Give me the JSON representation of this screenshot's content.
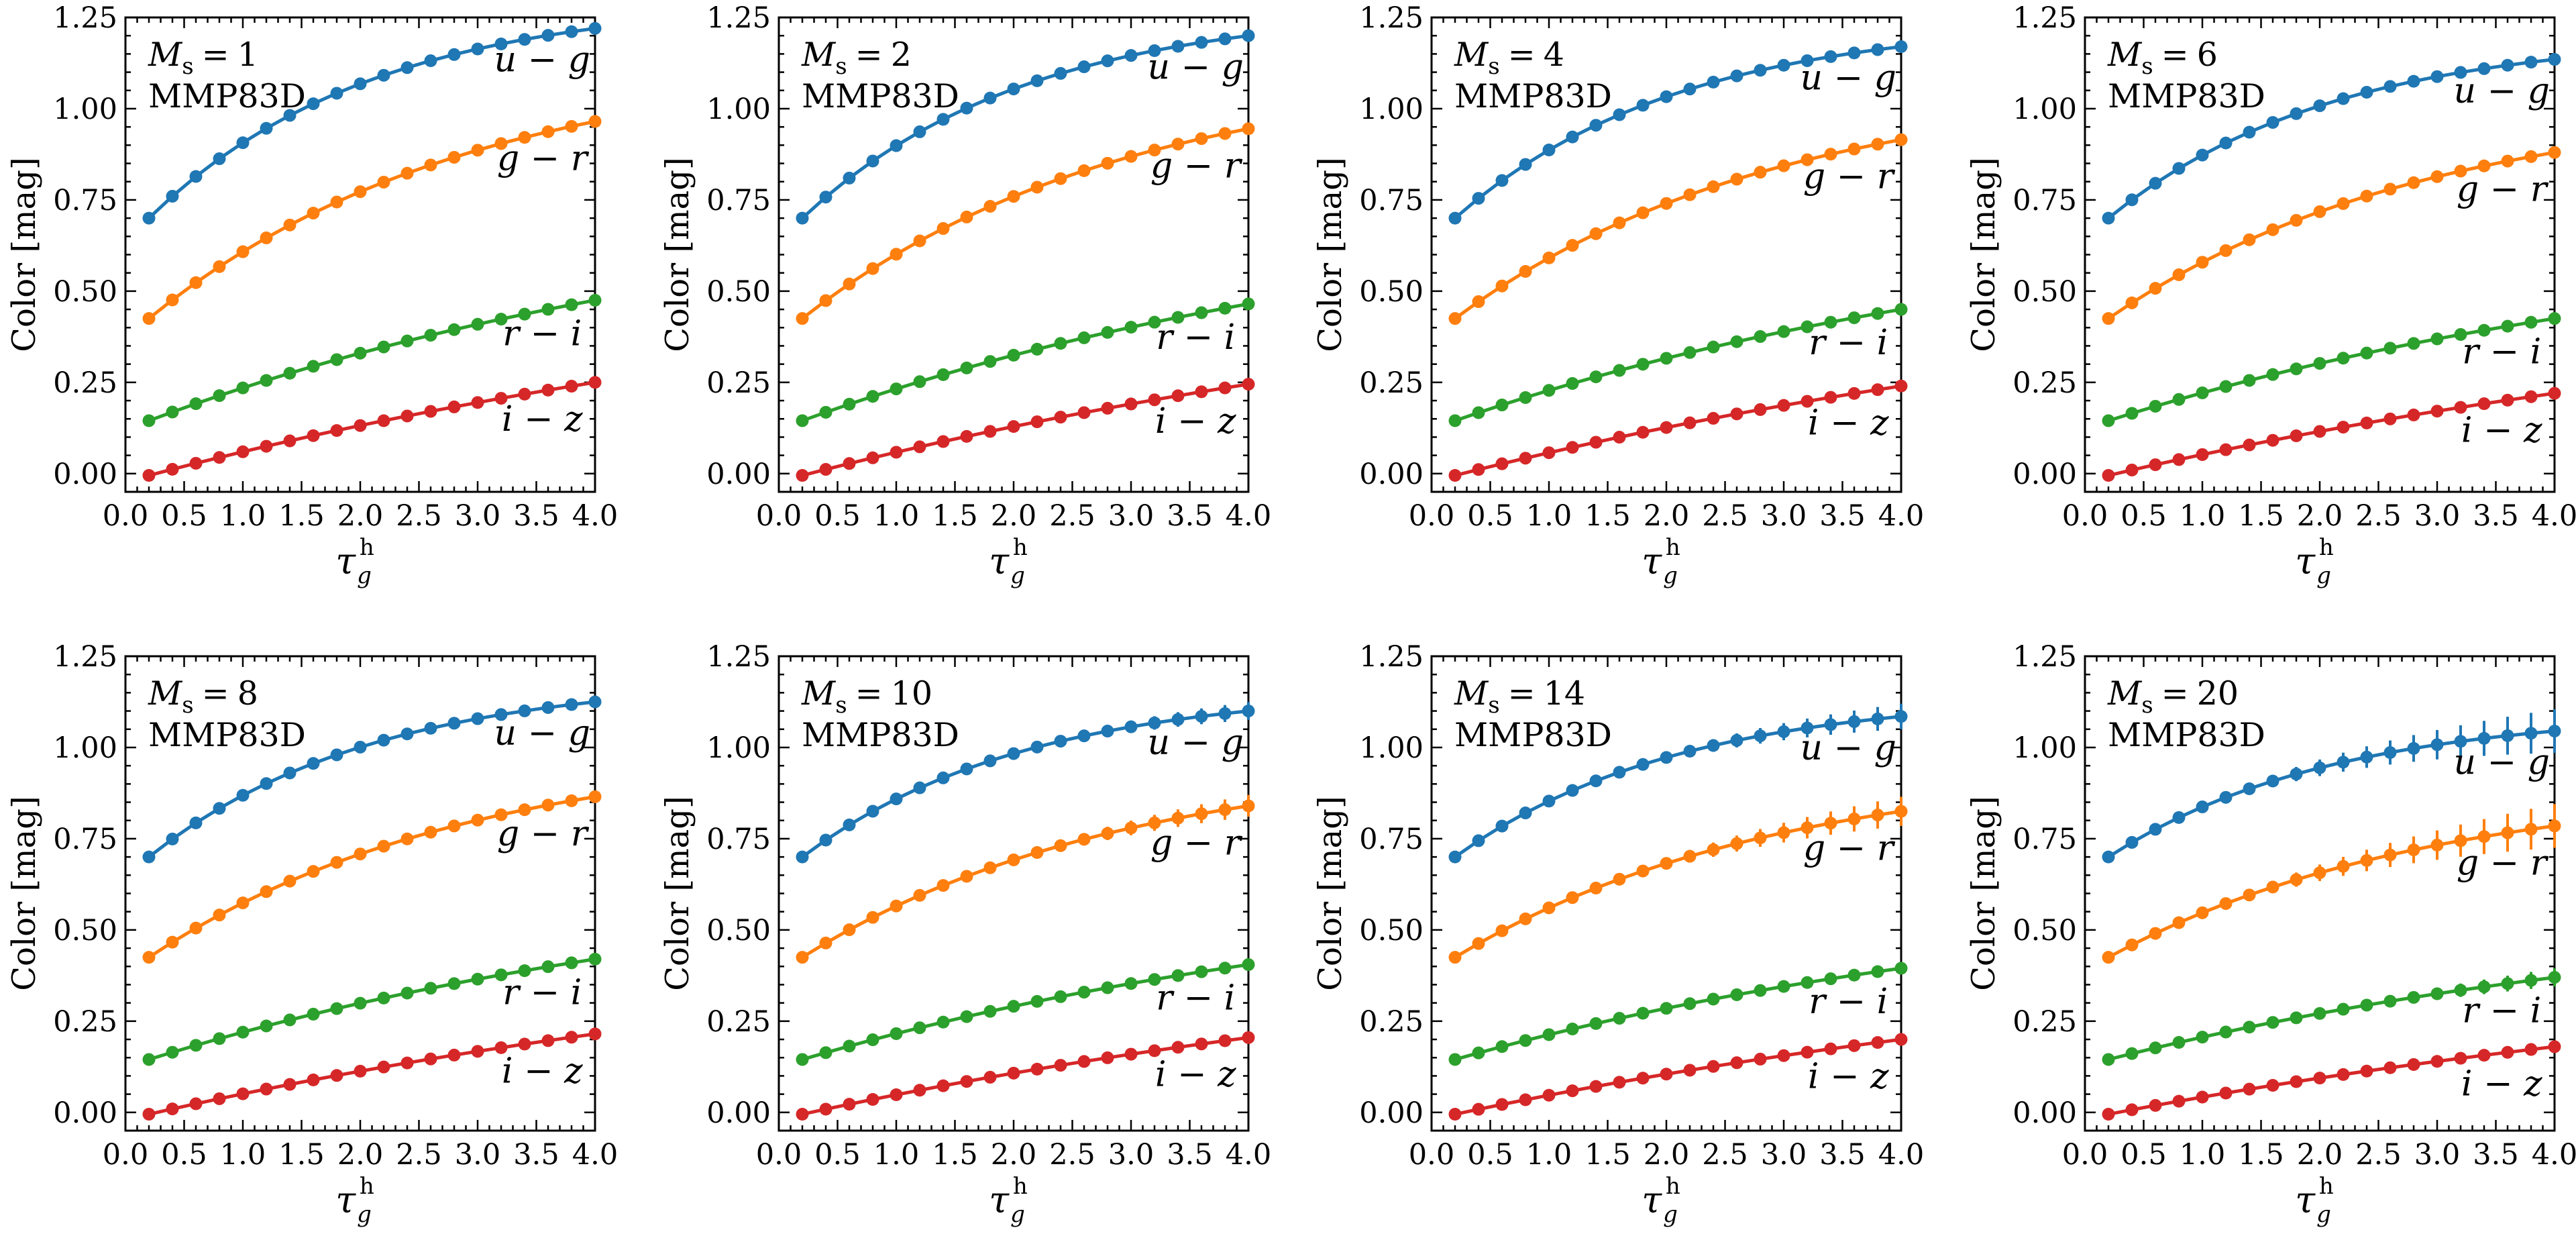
{
  "figure": {
    "y_axis_label": "Color [mag]",
    "x_axis_label": "τ",
    "x_axis_label_sub": "g",
    "x_axis_label_sup": "h",
    "model_label": "MMP83D",
    "ms_symbol": "M",
    "ms_sub": "s"
  },
  "colors": {
    "u-g": "#1f77b4",
    "g-r": "#ff7f0e",
    "r-i": "#2ca02c",
    "i-z": "#d62728"
  },
  "chart_data": {
    "type": "line",
    "layout": "2x4 grid of panels",
    "x": [
      0.2,
      0.4,
      0.6,
      0.8,
      1.0,
      1.2,
      1.4,
      1.6,
      1.8,
      2.0,
      2.2,
      2.4,
      2.6,
      2.8,
      3.0,
      3.2,
      3.4,
      3.6,
      3.8,
      4.0
    ],
    "xlim": [
      0.0,
      4.0
    ],
    "ylim": [
      -0.05,
      1.25
    ],
    "x_ticks": [
      "0.0",
      "0.5",
      "1.0",
      "1.5",
      "2.0",
      "2.5",
      "3.0",
      "3.5",
      "4.0"
    ],
    "y_ticks": [
      "0.00",
      "0.25",
      "0.50",
      "0.75",
      "1.00",
      "1.25"
    ],
    "series_names": [
      "u − g",
      "g − r",
      "r − i",
      "i − z"
    ],
    "panels": [
      {
        "ms_value": "1",
        "series": [
          {
            "key": "u-g",
            "name": "u − g",
            "start": 0.7,
            "end": 1.22,
            "curvature": 2.0,
            "err_end": 0.0
          },
          {
            "key": "g-r",
            "name": "g − r",
            "start": 0.425,
            "end": 0.965,
            "curvature": 1.4,
            "err_end": 0.0
          },
          {
            "key": "r-i",
            "name": "r − i",
            "start": 0.145,
            "end": 0.475,
            "curvature": 0.7,
            "err_end": 0.0
          },
          {
            "key": "i-z",
            "name": "i − z",
            "start": -0.005,
            "end": 0.25,
            "curvature": 0.5,
            "err_end": 0.0
          }
        ]
      },
      {
        "ms_value": "2",
        "series": [
          {
            "key": "u-g",
            "name": "u − g",
            "start": 0.7,
            "end": 1.2,
            "curvature": 2.0,
            "err_end": 0.0
          },
          {
            "key": "g-r",
            "name": "g − r",
            "start": 0.425,
            "end": 0.945,
            "curvature": 1.4,
            "err_end": 0.0
          },
          {
            "key": "r-i",
            "name": "r − i",
            "start": 0.145,
            "end": 0.465,
            "curvature": 0.7,
            "err_end": 0.0
          },
          {
            "key": "i-z",
            "name": "i − z",
            "start": -0.005,
            "end": 0.245,
            "curvature": 0.5,
            "err_end": 0.0
          }
        ]
      },
      {
        "ms_value": "4",
        "series": [
          {
            "key": "u-g",
            "name": "u − g",
            "start": 0.7,
            "end": 1.17,
            "curvature": 2.0,
            "err_end": 0.005
          },
          {
            "key": "g-r",
            "name": "g − r",
            "start": 0.425,
            "end": 0.915,
            "curvature": 1.4,
            "err_end": 0.005
          },
          {
            "key": "r-i",
            "name": "r − i",
            "start": 0.145,
            "end": 0.45,
            "curvature": 0.7,
            "err_end": 0.0
          },
          {
            "key": "i-z",
            "name": "i − z",
            "start": -0.005,
            "end": 0.24,
            "curvature": 0.5,
            "err_end": 0.0
          }
        ]
      },
      {
        "ms_value": "6",
        "series": [
          {
            "key": "u-g",
            "name": "u − g",
            "start": 0.7,
            "end": 1.135,
            "curvature": 2.0,
            "err_end": 0.01
          },
          {
            "key": "g-r",
            "name": "g − r",
            "start": 0.425,
            "end": 0.88,
            "curvature": 1.4,
            "err_end": 0.01
          },
          {
            "key": "r-i",
            "name": "r − i",
            "start": 0.145,
            "end": 0.425,
            "curvature": 0.7,
            "err_end": 0.005
          },
          {
            "key": "i-z",
            "name": "i − z",
            "start": -0.005,
            "end": 0.22,
            "curvature": 0.5,
            "err_end": 0.0
          }
        ]
      },
      {
        "ms_value": "8",
        "series": [
          {
            "key": "u-g",
            "name": "u − g",
            "start": 0.7,
            "end": 1.125,
            "curvature": 2.0,
            "err_end": 0.01
          },
          {
            "key": "g-r",
            "name": "g − r",
            "start": 0.425,
            "end": 0.865,
            "curvature": 1.4,
            "err_end": 0.01
          },
          {
            "key": "r-i",
            "name": "r − i",
            "start": 0.145,
            "end": 0.42,
            "curvature": 0.7,
            "err_end": 0.005
          },
          {
            "key": "i-z",
            "name": "i − z",
            "start": -0.005,
            "end": 0.215,
            "curvature": 0.5,
            "err_end": 0.0
          }
        ]
      },
      {
        "ms_value": "10",
        "series": [
          {
            "key": "u-g",
            "name": "u − g",
            "start": 0.7,
            "end": 1.1,
            "curvature": 2.0,
            "err_end": 0.025
          },
          {
            "key": "g-r",
            "name": "g − r",
            "start": 0.425,
            "end": 0.84,
            "curvature": 1.4,
            "err_end": 0.03
          },
          {
            "key": "r-i",
            "name": "r − i",
            "start": 0.145,
            "end": 0.405,
            "curvature": 0.7,
            "err_end": 0.01
          },
          {
            "key": "i-z",
            "name": "i − z",
            "start": -0.005,
            "end": 0.205,
            "curvature": 0.5,
            "err_end": 0.005
          }
        ]
      },
      {
        "ms_value": "14",
        "series": [
          {
            "key": "u-g",
            "name": "u − g",
            "start": 0.7,
            "end": 1.085,
            "curvature": 2.0,
            "err_end": 0.035
          },
          {
            "key": "g-r",
            "name": "g − r",
            "start": 0.425,
            "end": 0.825,
            "curvature": 1.4,
            "err_end": 0.04
          },
          {
            "key": "r-i",
            "name": "r − i",
            "start": 0.145,
            "end": 0.395,
            "curvature": 0.7,
            "err_end": 0.015
          },
          {
            "key": "i-z",
            "name": "i − z",
            "start": -0.005,
            "end": 0.2,
            "curvature": 0.5,
            "err_end": 0.008
          }
        ]
      },
      {
        "ms_value": "20",
        "series": [
          {
            "key": "u-g",
            "name": "u − g",
            "start": 0.7,
            "end": 1.045,
            "curvature": 2.0,
            "err_end": 0.06
          },
          {
            "key": "g-r",
            "name": "g − r",
            "start": 0.425,
            "end": 0.785,
            "curvature": 1.4,
            "err_end": 0.06
          },
          {
            "key": "r-i",
            "name": "r − i",
            "start": 0.145,
            "end": 0.37,
            "curvature": 0.7,
            "err_end": 0.025
          },
          {
            "key": "i-z",
            "name": "i − z",
            "start": -0.005,
            "end": 0.18,
            "curvature": 0.5,
            "err_end": 0.012
          }
        ]
      }
    ]
  }
}
